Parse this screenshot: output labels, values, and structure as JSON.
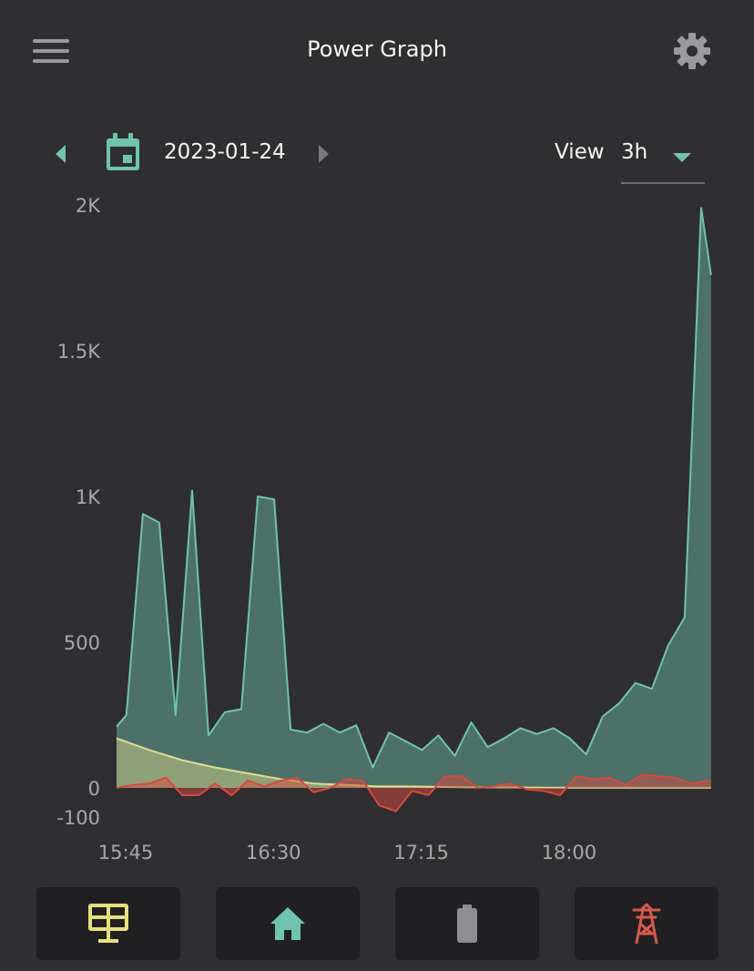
{
  "header": {
    "title": "Power Graph",
    "menu_icon": "hamburger-menu-icon",
    "settings_icon": "gear-icon"
  },
  "date_nav": {
    "date": "2023-01-24",
    "prev_icon": "caret-left-icon",
    "next_icon": "caret-right-icon",
    "calendar_icon": "calendar-icon",
    "view_label": "View",
    "view_value": "3h"
  },
  "colors": {
    "background": "#2f2f31",
    "house": "#6ec4b0",
    "solar": "#e0dc8c",
    "grid": "#d9493c",
    "accent": "#6ec4b0"
  },
  "chart_data": {
    "type": "area",
    "x_ticks": [
      "15:45",
      "16:30",
      "17:15",
      "18:00"
    ],
    "y_ticks": [
      "2K",
      "1.5K",
      "1K",
      "500",
      "0",
      "-100"
    ],
    "ylim": [
      -100,
      2000
    ],
    "xlim": [
      0,
      183
    ],
    "grid": false,
    "series": [
      {
        "key": "house",
        "color": "#6ec4b0",
        "points": [
          [
            0,
            210
          ],
          [
            3,
            250
          ],
          [
            8,
            940
          ],
          [
            13,
            910
          ],
          [
            18,
            250
          ],
          [
            23,
            1020
          ],
          [
            28,
            180
          ],
          [
            33,
            260
          ],
          [
            38,
            270
          ],
          [
            43,
            1000
          ],
          [
            48,
            990
          ],
          [
            53,
            200
          ],
          [
            58,
            190
          ],
          [
            63,
            220
          ],
          [
            68,
            190
          ],
          [
            73,
            215
          ],
          [
            78,
            70
          ],
          [
            83,
            190
          ],
          [
            88,
            160
          ],
          [
            93,
            130
          ],
          [
            98,
            180
          ],
          [
            103,
            110
          ],
          [
            108,
            225
          ],
          [
            113,
            140
          ],
          [
            118,
            170
          ],
          [
            123,
            205
          ],
          [
            128,
            185
          ],
          [
            133,
            205
          ],
          [
            138,
            170
          ],
          [
            143,
            115
          ],
          [
            148,
            245
          ],
          [
            153,
            290
          ],
          [
            158,
            360
          ],
          [
            163,
            340
          ],
          [
            168,
            490
          ],
          [
            173,
            585
          ],
          [
            178,
            1990
          ],
          [
            181,
            1760
          ]
        ]
      },
      {
        "key": "solar",
        "color": "#e0dc8c",
        "points": [
          [
            0,
            170
          ],
          [
            10,
            130
          ],
          [
            20,
            95
          ],
          [
            30,
            70
          ],
          [
            40,
            50
          ],
          [
            50,
            30
          ],
          [
            60,
            15
          ],
          [
            70,
            10
          ],
          [
            80,
            5
          ],
          [
            90,
            5
          ],
          [
            100,
            3
          ],
          [
            110,
            2
          ],
          [
            120,
            2
          ],
          [
            130,
            1
          ],
          [
            140,
            1
          ],
          [
            150,
            1
          ],
          [
            160,
            1
          ],
          [
            170,
            1
          ],
          [
            181,
            1
          ]
        ]
      },
      {
        "key": "grid",
        "color": "#d9493c",
        "points": [
          [
            0,
            0
          ],
          [
            5,
            10
          ],
          [
            10,
            15
          ],
          [
            15,
            35
          ],
          [
            20,
            -25
          ],
          [
            25,
            -25
          ],
          [
            30,
            15
          ],
          [
            35,
            -25
          ],
          [
            40,
            25
          ],
          [
            45,
            5
          ],
          [
            50,
            25
          ],
          [
            55,
            35
          ],
          [
            60,
            -15
          ],
          [
            65,
            0
          ],
          [
            70,
            30
          ],
          [
            75,
            25
          ],
          [
            80,
            -60
          ],
          [
            85,
            -80
          ],
          [
            90,
            -10
          ],
          [
            95,
            -25
          ],
          [
            100,
            40
          ],
          [
            105,
            40
          ],
          [
            110,
            0
          ],
          [
            115,
            5
          ],
          [
            120,
            15
          ],
          [
            125,
            -5
          ],
          [
            130,
            -10
          ],
          [
            135,
            -25
          ],
          [
            140,
            40
          ],
          [
            145,
            30
          ],
          [
            150,
            35
          ],
          [
            155,
            10
          ],
          [
            160,
            45
          ],
          [
            165,
            40
          ],
          [
            170,
            35
          ],
          [
            175,
            15
          ],
          [
            180,
            25
          ],
          [
            181,
            20
          ]
        ]
      }
    ]
  },
  "bottom_nav": {
    "items": [
      {
        "icon": "solar-panel-icon",
        "color": "#e6e07a"
      },
      {
        "icon": "home-icon",
        "color": "#6ec4b0"
      },
      {
        "icon": "battery-icon",
        "color": "#8f8f91"
      },
      {
        "icon": "power-tower-icon",
        "color": "#d9584a"
      }
    ]
  }
}
